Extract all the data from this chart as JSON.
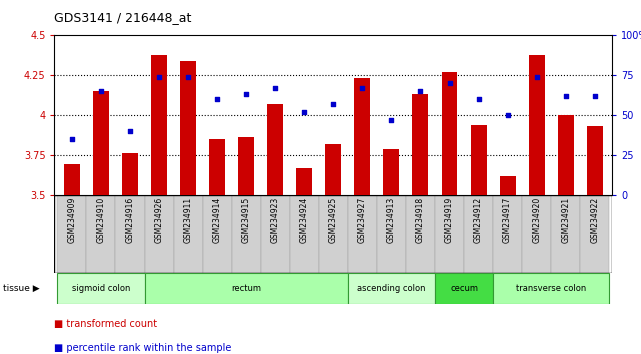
{
  "title": "GDS3141 / 216448_at",
  "samples": [
    "GSM234909",
    "GSM234910",
    "GSM234916",
    "GSM234926",
    "GSM234911",
    "GSM234914",
    "GSM234915",
    "GSM234923",
    "GSM234924",
    "GSM234925",
    "GSM234927",
    "GSM234913",
    "GSM234918",
    "GSM234919",
    "GSM234912",
    "GSM234917",
    "GSM234920",
    "GSM234921",
    "GSM234922"
  ],
  "bar_values": [
    3.69,
    4.15,
    3.76,
    4.38,
    4.34,
    3.85,
    3.86,
    4.07,
    3.67,
    3.82,
    4.23,
    3.79,
    4.13,
    4.27,
    3.94,
    3.62,
    4.38,
    4.0,
    3.93
  ],
  "dot_values": [
    35,
    65,
    40,
    74,
    74,
    60,
    63,
    67,
    52,
    57,
    67,
    47,
    65,
    70,
    60,
    50,
    74,
    62,
    62
  ],
  "ylim_left": [
    3.5,
    4.5
  ],
  "ylim_right": [
    0,
    100
  ],
  "yticks_left": [
    3.5,
    3.75,
    4.0,
    4.25,
    4.5
  ],
  "yticks_right": [
    0,
    25,
    50,
    75,
    100
  ],
  "ytick_labels_left": [
    "3.5",
    "3.75",
    "4",
    "4.25",
    "4.5"
  ],
  "ytick_labels_right": [
    "0",
    "25",
    "50",
    "75",
    "100%"
  ],
  "hlines": [
    3.75,
    4.0,
    4.25
  ],
  "bar_color": "#cc0000",
  "dot_color": "#0000cc",
  "tissue_groups": [
    {
      "label": "sigmoid colon",
      "start": 0,
      "end": 3,
      "color": "#ccffcc"
    },
    {
      "label": "rectum",
      "start": 3,
      "end": 10,
      "color": "#aaffaa"
    },
    {
      "label": "ascending colon",
      "start": 10,
      "end": 13,
      "color": "#ccffcc"
    },
    {
      "label": "cecum",
      "start": 13,
      "end": 15,
      "color": "#44dd44"
    },
    {
      "label": "transverse colon",
      "start": 15,
      "end": 19,
      "color": "#aaffaa"
    }
  ],
  "left_axis_color": "#cc0000",
  "right_axis_color": "#0000cc",
  "plot_bg_color": "#ffffff",
  "sample_bg_color": "#d0d0d0",
  "border_color": "#000000"
}
